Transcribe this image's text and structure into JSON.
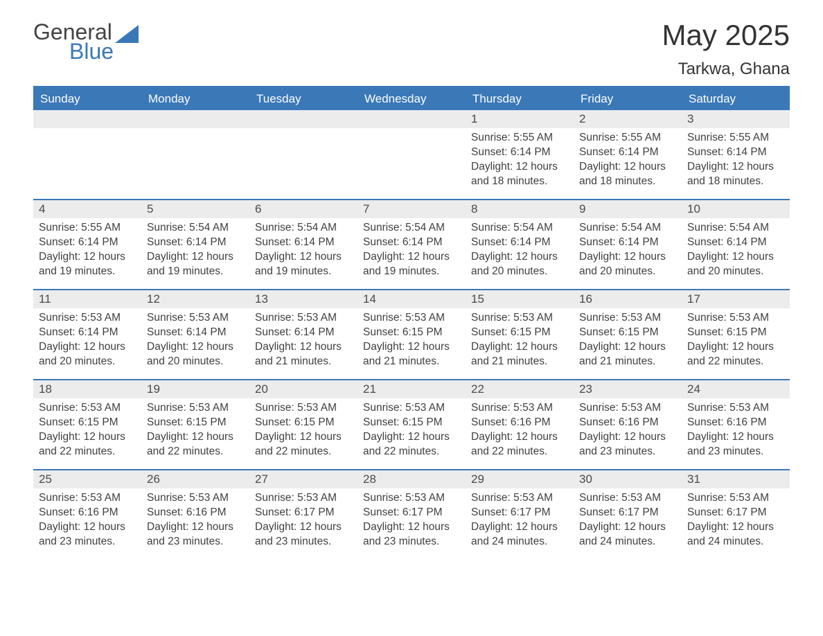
{
  "logo": {
    "line1": "General",
    "line2": "Blue",
    "text_color_gray": "#444444",
    "text_color_blue": "#3a78b8",
    "shape_color": "#3a78b8"
  },
  "header": {
    "month_title": "May 2025",
    "location": "Tarkwa, Ghana"
  },
  "colors": {
    "header_bg": "#3a78b8",
    "header_text": "#ffffff",
    "daynum_bg": "#ececec",
    "daynum_text": "#4a4a4a",
    "info_text": "#404040",
    "divider": "#3a78b8",
    "page_bg": "#ffffff"
  },
  "days_of_week": [
    "Sunday",
    "Monday",
    "Tuesday",
    "Wednesday",
    "Thursday",
    "Friday",
    "Saturday"
  ],
  "labels": {
    "sunrise": "Sunrise:",
    "sunset": "Sunset:",
    "daylight": "Daylight:"
  },
  "weeks": [
    [
      {
        "empty": true
      },
      {
        "empty": true
      },
      {
        "empty": true
      },
      {
        "empty": true
      },
      {
        "day": "1",
        "sunrise": "5:55 AM",
        "sunset": "6:14 PM",
        "daylight": "12 hours and 18 minutes."
      },
      {
        "day": "2",
        "sunrise": "5:55 AM",
        "sunset": "6:14 PM",
        "daylight": "12 hours and 18 minutes."
      },
      {
        "day": "3",
        "sunrise": "5:55 AM",
        "sunset": "6:14 PM",
        "daylight": "12 hours and 18 minutes."
      }
    ],
    [
      {
        "day": "4",
        "sunrise": "5:55 AM",
        "sunset": "6:14 PM",
        "daylight": "12 hours and 19 minutes."
      },
      {
        "day": "5",
        "sunrise": "5:54 AM",
        "sunset": "6:14 PM",
        "daylight": "12 hours and 19 minutes."
      },
      {
        "day": "6",
        "sunrise": "5:54 AM",
        "sunset": "6:14 PM",
        "daylight": "12 hours and 19 minutes."
      },
      {
        "day": "7",
        "sunrise": "5:54 AM",
        "sunset": "6:14 PM",
        "daylight": "12 hours and 19 minutes."
      },
      {
        "day": "8",
        "sunrise": "5:54 AM",
        "sunset": "6:14 PM",
        "daylight": "12 hours and 20 minutes."
      },
      {
        "day": "9",
        "sunrise": "5:54 AM",
        "sunset": "6:14 PM",
        "daylight": "12 hours and 20 minutes."
      },
      {
        "day": "10",
        "sunrise": "5:54 AM",
        "sunset": "6:14 PM",
        "daylight": "12 hours and 20 minutes."
      }
    ],
    [
      {
        "day": "11",
        "sunrise": "5:53 AM",
        "sunset": "6:14 PM",
        "daylight": "12 hours and 20 minutes."
      },
      {
        "day": "12",
        "sunrise": "5:53 AM",
        "sunset": "6:14 PM",
        "daylight": "12 hours and 20 minutes."
      },
      {
        "day": "13",
        "sunrise": "5:53 AM",
        "sunset": "6:14 PM",
        "daylight": "12 hours and 21 minutes."
      },
      {
        "day": "14",
        "sunrise": "5:53 AM",
        "sunset": "6:15 PM",
        "daylight": "12 hours and 21 minutes."
      },
      {
        "day": "15",
        "sunrise": "5:53 AM",
        "sunset": "6:15 PM",
        "daylight": "12 hours and 21 minutes."
      },
      {
        "day": "16",
        "sunrise": "5:53 AM",
        "sunset": "6:15 PM",
        "daylight": "12 hours and 21 minutes."
      },
      {
        "day": "17",
        "sunrise": "5:53 AM",
        "sunset": "6:15 PM",
        "daylight": "12 hours and 22 minutes."
      }
    ],
    [
      {
        "day": "18",
        "sunrise": "5:53 AM",
        "sunset": "6:15 PM",
        "daylight": "12 hours and 22 minutes."
      },
      {
        "day": "19",
        "sunrise": "5:53 AM",
        "sunset": "6:15 PM",
        "daylight": "12 hours and 22 minutes."
      },
      {
        "day": "20",
        "sunrise": "5:53 AM",
        "sunset": "6:15 PM",
        "daylight": "12 hours and 22 minutes."
      },
      {
        "day": "21",
        "sunrise": "5:53 AM",
        "sunset": "6:15 PM",
        "daylight": "12 hours and 22 minutes."
      },
      {
        "day": "22",
        "sunrise": "5:53 AM",
        "sunset": "6:16 PM",
        "daylight": "12 hours and 22 minutes."
      },
      {
        "day": "23",
        "sunrise": "5:53 AM",
        "sunset": "6:16 PM",
        "daylight": "12 hours and 23 minutes."
      },
      {
        "day": "24",
        "sunrise": "5:53 AM",
        "sunset": "6:16 PM",
        "daylight": "12 hours and 23 minutes."
      }
    ],
    [
      {
        "day": "25",
        "sunrise": "5:53 AM",
        "sunset": "6:16 PM",
        "daylight": "12 hours and 23 minutes."
      },
      {
        "day": "26",
        "sunrise": "5:53 AM",
        "sunset": "6:16 PM",
        "daylight": "12 hours and 23 minutes."
      },
      {
        "day": "27",
        "sunrise": "5:53 AM",
        "sunset": "6:17 PM",
        "daylight": "12 hours and 23 minutes."
      },
      {
        "day": "28",
        "sunrise": "5:53 AM",
        "sunset": "6:17 PM",
        "daylight": "12 hours and 23 minutes."
      },
      {
        "day": "29",
        "sunrise": "5:53 AM",
        "sunset": "6:17 PM",
        "daylight": "12 hours and 24 minutes."
      },
      {
        "day": "30",
        "sunrise": "5:53 AM",
        "sunset": "6:17 PM",
        "daylight": "12 hours and 24 minutes."
      },
      {
        "day": "31",
        "sunrise": "5:53 AM",
        "sunset": "6:17 PM",
        "daylight": "12 hours and 24 minutes."
      }
    ]
  ]
}
